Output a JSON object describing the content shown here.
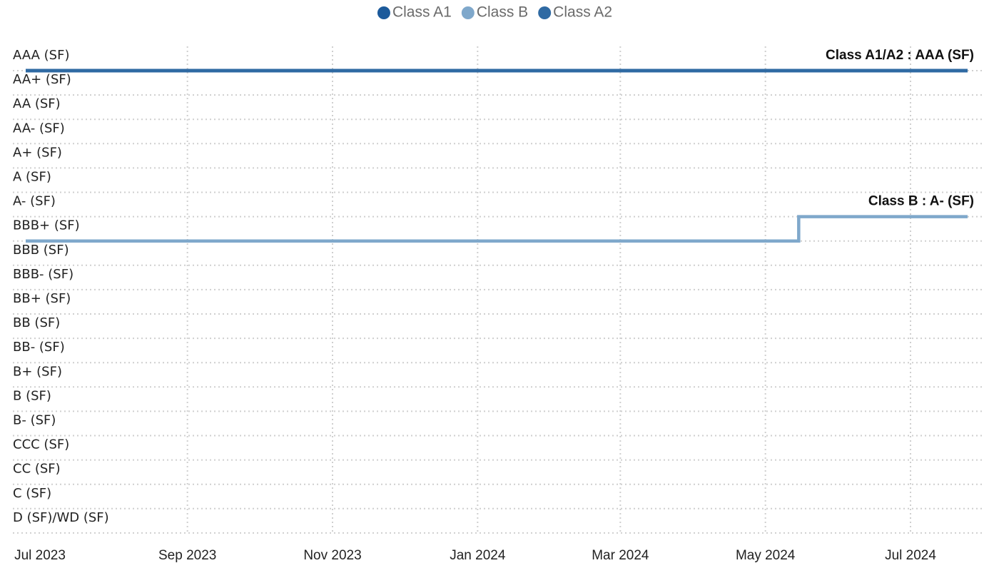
{
  "chart_data": {
    "type": "step",
    "y_categories": [
      "AAA (SF)",
      "AA+ (SF)",
      "AA (SF)",
      "AA- (SF)",
      "A+ (SF)",
      "A (SF)",
      "A- (SF)",
      "BBB+ (SF)",
      "BBB (SF)",
      "BBB- (SF)",
      "BB+ (SF)",
      "BB (SF)",
      "BB- (SF)",
      "B+ (SF)",
      "B (SF)",
      "B- (SF)",
      "CCC (SF)",
      "CC (SF)",
      "C (SF)",
      "D (SF)/WD (SF)"
    ],
    "x": [
      "2023-06-25",
      "2024-05-15",
      "2024-07-25"
    ],
    "xlim": [
      "2023-06-25",
      "2024-07-25"
    ],
    "xticks": [
      {
        "value": "2023-07-01",
        "label": "Jul 2023"
      },
      {
        "value": "2023-09-01",
        "label": "Sep 2023"
      },
      {
        "value": "2023-11-01",
        "label": "Nov 2023"
      },
      {
        "value": "2024-01-01",
        "label": "Jan 2024"
      },
      {
        "value": "2024-03-01",
        "label": "Mar 2024"
      },
      {
        "value": "2024-05-01",
        "label": "May 2024"
      },
      {
        "value": "2024-07-01",
        "label": "Jul 2024"
      }
    ],
    "series": [
      {
        "name": "Class A1",
        "color": "#1c5a9b",
        "values": [
          "AAA (SF)",
          "AAA (SF)",
          "AAA (SF)"
        ]
      },
      {
        "name": "Class B",
        "color": "#7fa8cb",
        "values": [
          "BBB+ (SF)",
          "A- (SF)",
          "A- (SF)"
        ]
      },
      {
        "name": "Class A2",
        "color": "#2f6aa3",
        "values": [
          "AAA (SF)",
          "AAA (SF)",
          "AAA (SF)"
        ]
      }
    ],
    "annotations": [
      {
        "text": "Class A1/A2 : AAA (SF)",
        "series": 2
      },
      {
        "text": "Class B : A- (SF)",
        "series": 1
      }
    ],
    "grid": true,
    "legend": "top"
  }
}
